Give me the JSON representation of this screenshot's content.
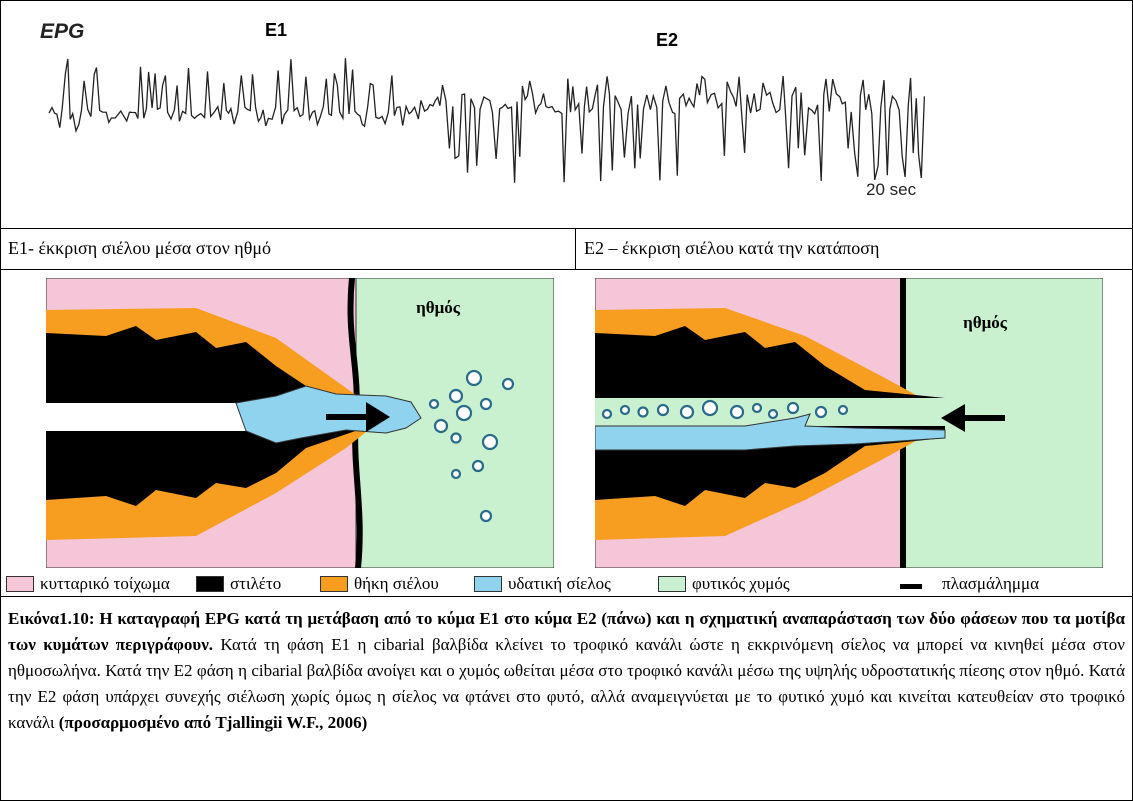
{
  "waveform": {
    "label": "EPG",
    "phase1": "E1",
    "phase2": "E2",
    "time_scale": "20 sec"
  },
  "phases": {
    "e1_text": "E1- έκκριση σιέλου μέσα στον ηθμό",
    "e2_text": "E2 – έκκριση σιέλου κατά την κατάποση"
  },
  "diagram_left": {
    "label": "ηθμός"
  },
  "diagram_right": {
    "label": "ηθμός"
  },
  "legend": [
    {
      "label": "κυτταρικό τοίχωμα",
      "color": "#f4c6d8"
    },
    {
      "label": "στιλέτο",
      "color": "#000000"
    },
    {
      "label": "θήκη σιέλου",
      "color": "#f79d1f"
    },
    {
      "label": "υδατική σίελος",
      "color": "#8fd3ee"
    },
    {
      "label": "φυτικός χυμός",
      "color": "#c9f0cf"
    },
    {
      "label": "πλασμάλημμα",
      "color": "#000000"
    }
  ],
  "caption": {
    "bold_title": "Εικόνα1.10: Η καταγραφή EPG κατά τη μετάβαση από το κύμα E1 στο κύμα E2 (πάνω) και η σχηματική αναπαράσταση των δύο φάσεων που τα μοτίβα των κυμάτων περιγράφουν.",
    "body": " Κατά τη φάση E1 η cibarial βαλβίδα κλείνει το τροφικό κανάλι ώστε η εκκρινόμενη σίελος να μπορεί να κινηθεί μέσα στον ηθμοσωλήνα. Κατά την E2 φάση η cibarial βαλβίδα ανοίγει και ο χυμός ωθείται μέσα στο τροφικό κανάλι μέσω της υψηλής υδροστατικής πίεσης στον ηθμό. Κατά την E2 φάση υπάρχει συνεχής σιέλωση χωρίς όμως η σίελος να φτάνει στο φυτό, αλλά αναμειγνύεται με το φυτικό χυμό και κινείται κατευθείαν στο τροφικό κανάλι ",
    "source": "(προσαρμοσμένο από Tjallingii W.F., 2006)"
  }
}
